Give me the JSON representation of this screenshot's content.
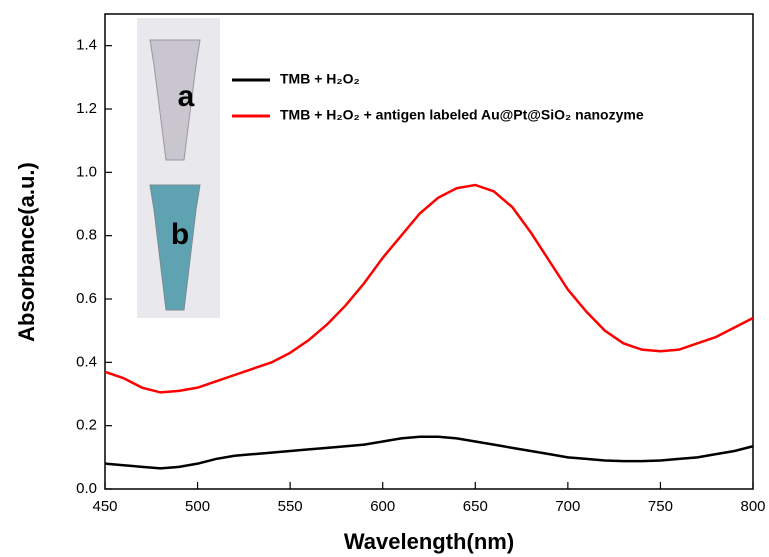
{
  "chart_data": {
    "type": "line",
    "xlabel": "Wavelength(nm)",
    "ylabel": "Absorbance(a.u.)",
    "x": [
      450,
      460,
      470,
      480,
      490,
      500,
      510,
      520,
      530,
      540,
      550,
      560,
      570,
      580,
      590,
      600,
      610,
      620,
      630,
      640,
      650,
      660,
      670,
      680,
      690,
      700,
      710,
      720,
      730,
      740,
      750,
      760,
      770,
      780,
      790,
      800
    ],
    "series": [
      {
        "name": "TMB + H₂O₂",
        "color": "#000000",
        "values": [
          0.08,
          0.075,
          0.07,
          0.065,
          0.07,
          0.08,
          0.095,
          0.105,
          0.11,
          0.115,
          0.12,
          0.125,
          0.13,
          0.135,
          0.14,
          0.15,
          0.16,
          0.165,
          0.165,
          0.16,
          0.15,
          0.14,
          0.13,
          0.12,
          0.11,
          0.1,
          0.095,
          0.09,
          0.088,
          0.088,
          0.09,
          0.095,
          0.1,
          0.11,
          0.12,
          0.135
        ]
      },
      {
        "name": "TMB + H₂O₂ + antigen labeled Au@Pt@SiO₂ nanozyme",
        "color": "#ff0000",
        "values": [
          0.37,
          0.35,
          0.32,
          0.305,
          0.31,
          0.32,
          0.34,
          0.36,
          0.38,
          0.4,
          0.43,
          0.47,
          0.52,
          0.58,
          0.65,
          0.73,
          0.8,
          0.87,
          0.92,
          0.95,
          0.96,
          0.94,
          0.89,
          0.81,
          0.72,
          0.63,
          0.56,
          0.5,
          0.46,
          0.44,
          0.435,
          0.44,
          0.46,
          0.48,
          0.51,
          0.54
        ]
      }
    ],
    "xlim": [
      450,
      800
    ],
    "xticks": [
      450,
      500,
      550,
      600,
      650,
      700,
      750,
      800
    ],
    "ylim": [
      0,
      1.5
    ],
    "yticks": [
      {
        "value": 0,
        "label": "0.0"
      },
      0.2,
      0.4,
      0.6,
      0.8,
      {
        "value": 1,
        "label": "1.0"
      },
      1.2,
      1.4
    ],
    "annotations": [
      "a",
      "b"
    ]
  }
}
